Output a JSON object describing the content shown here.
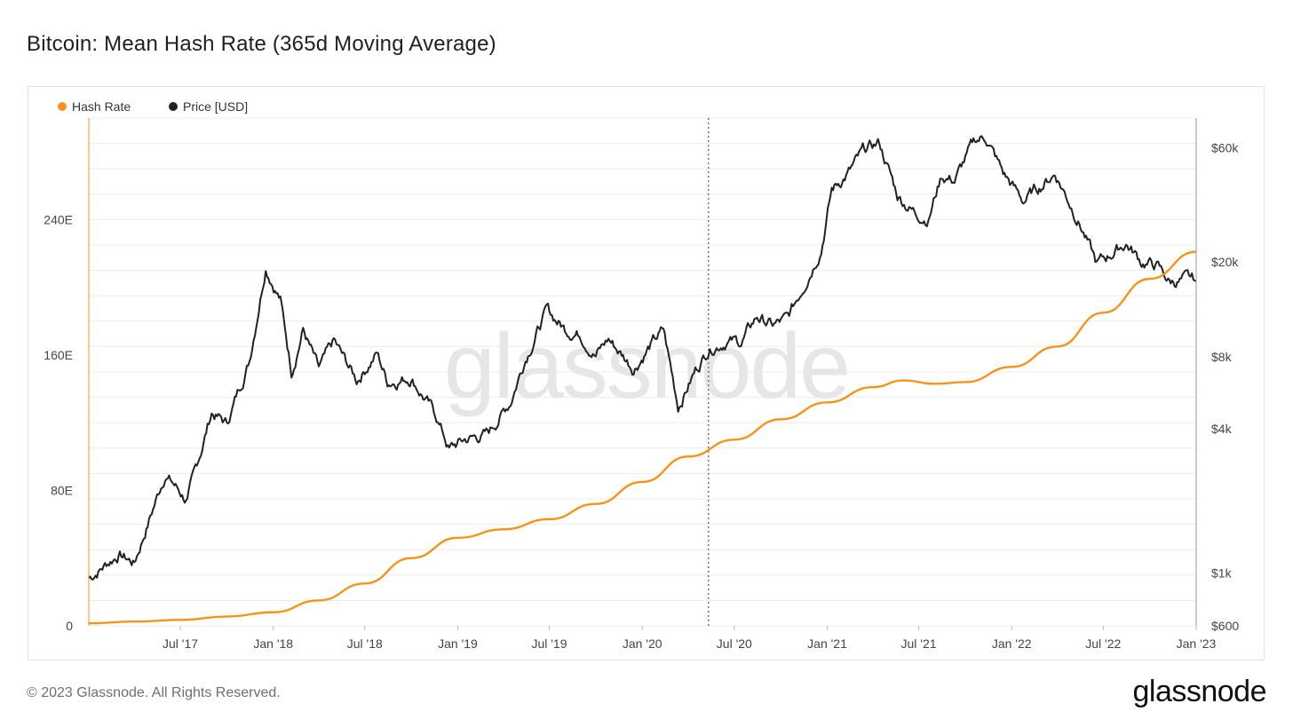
{
  "title": "Bitcoin: Mean Hash Rate (365d Moving Average)",
  "footer": "© 2023 Glassnode. All Rights Reserved.",
  "brand": "glassnode",
  "watermark": "glassnode",
  "colors": {
    "hash_rate": "#f7931a",
    "price": "#222222",
    "grid": "#ececec",
    "text": "#444444"
  },
  "chart_data": {
    "type": "line",
    "title": "Bitcoin: Mean Hash Rate (365d Moving Average)",
    "x_ticks": [
      "Jul '17",
      "Jan '18",
      "Jul '18",
      "Jan '19",
      "Jul '19",
      "Jan '20",
      "Jul '20",
      "Jan '21",
      "Jul '21",
      "Jan '22",
      "Jul '22",
      "Jan '23"
    ],
    "xlim": [
      "2017-01-01",
      "2023-01-01"
    ],
    "y_left": {
      "ticks": [
        "0",
        "80E",
        "160E",
        "240E"
      ],
      "unit": "EH/s",
      "lim": [
        0,
        300
      ]
    },
    "y_right": {
      "ticks": [
        "$600",
        "$1k",
        "$4k",
        "$8k",
        "$20k",
        "$60k"
      ],
      "scale": "log",
      "lim": [
        600,
        80000
      ]
    },
    "annotation": {
      "type": "vertical-dotted-line",
      "date": "2020-05-11"
    },
    "legend": {
      "placement": "top-left"
    },
    "series": [
      {
        "name": "Hash Rate",
        "axis": "left",
        "points": [
          [
            "2017-01-01",
            1.5
          ],
          [
            "2017-04-01",
            2.5
          ],
          [
            "2017-07-01",
            3.5
          ],
          [
            "2017-10-01",
            5.5
          ],
          [
            "2018-01-01",
            8
          ],
          [
            "2018-04-01",
            15
          ],
          [
            "2018-07-01",
            25
          ],
          [
            "2018-10-01",
            40
          ],
          [
            "2019-01-01",
            52
          ],
          [
            "2019-04-01",
            57
          ],
          [
            "2019-07-01",
            63
          ],
          [
            "2019-10-01",
            72
          ],
          [
            "2020-01-01",
            85
          ],
          [
            "2020-04-01",
            100
          ],
          [
            "2020-07-01",
            110
          ],
          [
            "2020-10-01",
            122
          ],
          [
            "2021-01-01",
            132
          ],
          [
            "2021-04-01",
            141
          ],
          [
            "2021-06-01",
            145
          ],
          [
            "2021-08-01",
            143
          ],
          [
            "2021-10-01",
            144
          ],
          [
            "2022-01-01",
            153
          ],
          [
            "2022-04-01",
            165
          ],
          [
            "2022-07-01",
            185
          ],
          [
            "2022-10-01",
            205
          ],
          [
            "2023-01-01",
            221
          ]
        ]
      },
      {
        "name": "Price [USD]",
        "axis": "right",
        "points": [
          [
            "2017-01-01",
            950
          ],
          [
            "2017-03-01",
            1200
          ],
          [
            "2017-04-01",
            1100
          ],
          [
            "2017-06-01",
            2600
          ],
          [
            "2017-07-15",
            2000
          ],
          [
            "2017-09-01",
            4700
          ],
          [
            "2017-10-01",
            4200
          ],
          [
            "2017-11-15",
            7800
          ],
          [
            "2017-12-17",
            19500
          ],
          [
            "2018-01-15",
            14000
          ],
          [
            "2018-02-06",
            7000
          ],
          [
            "2018-03-01",
            10500
          ],
          [
            "2018-04-01",
            7000
          ],
          [
            "2018-05-01",
            9200
          ],
          [
            "2018-06-15",
            6400
          ],
          [
            "2018-07-25",
            8300
          ],
          [
            "2018-08-15",
            6300
          ],
          [
            "2018-10-01",
            6600
          ],
          [
            "2018-11-20",
            4500
          ],
          [
            "2018-12-15",
            3300
          ],
          [
            "2019-01-15",
            3600
          ],
          [
            "2019-03-01",
            3800
          ],
          [
            "2019-04-15",
            5200
          ],
          [
            "2019-05-15",
            8000
          ],
          [
            "2019-06-26",
            12500
          ],
          [
            "2019-08-01",
            10500
          ],
          [
            "2019-09-01",
            10000
          ],
          [
            "2019-10-01",
            8200
          ],
          [
            "2019-10-26",
            9500
          ],
          [
            "2019-12-15",
            7200
          ],
          [
            "2020-01-15",
            8800
          ],
          [
            "2020-02-12",
            10300
          ],
          [
            "2020-03-12",
            5000
          ],
          [
            "2020-04-15",
            7000
          ],
          [
            "2020-05-11",
            8700
          ],
          [
            "2020-06-15",
            9400
          ],
          [
            "2020-07-15",
            9200
          ],
          [
            "2020-08-15",
            11800
          ],
          [
            "2020-09-15",
            10800
          ],
          [
            "2020-10-15",
            11500
          ],
          [
            "2020-11-15",
            16000
          ],
          [
            "2020-12-20",
            23000
          ],
          [
            "2021-01-10",
            40000
          ],
          [
            "2021-02-15",
            48000
          ],
          [
            "2021-03-15",
            58000
          ],
          [
            "2021-04-14",
            63000
          ],
          [
            "2021-05-20",
            38000
          ],
          [
            "2021-06-25",
            32000
          ],
          [
            "2021-07-20",
            30500
          ],
          [
            "2021-08-15",
            46000
          ],
          [
            "2021-09-10",
            44000
          ],
          [
            "2021-10-20",
            64000
          ],
          [
            "2021-11-10",
            67000
          ],
          [
            "2021-12-15",
            47000
          ],
          [
            "2022-01-24",
            36000
          ],
          [
            "2022-03-28",
            47000
          ],
          [
            "2022-05-15",
            29500
          ],
          [
            "2022-06-18",
            19500
          ],
          [
            "2022-08-15",
            24000
          ],
          [
            "2022-09-15",
            20000
          ],
          [
            "2022-10-15",
            19300
          ],
          [
            "2022-11-09",
            16500
          ],
          [
            "2022-12-15",
            16800
          ],
          [
            "2023-01-01",
            16600
          ]
        ]
      }
    ]
  }
}
